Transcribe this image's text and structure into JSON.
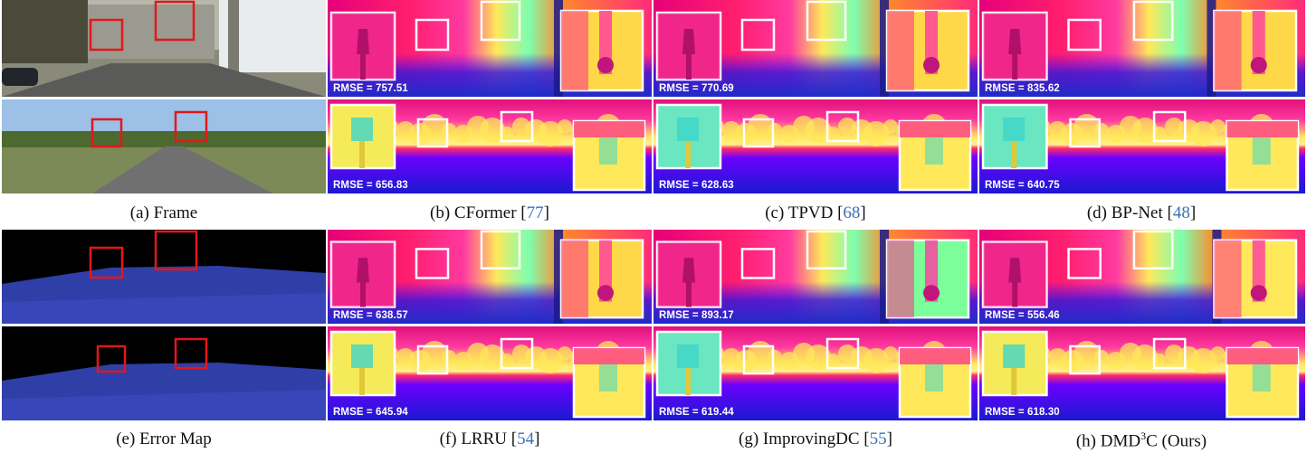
{
  "figure": {
    "captions": {
      "a": {
        "label": "(a) Frame"
      },
      "b": {
        "label": "(b) CFormer [",
        "ref": "77",
        "close": "]"
      },
      "c": {
        "label": "(c) TPVD [",
        "ref": "68",
        "close": "]"
      },
      "d": {
        "label": "(d) BP-Net [",
        "ref": "48",
        "close": "]"
      },
      "e": {
        "label": "(e) Error Map"
      },
      "f": {
        "label": "(f) LRRU [",
        "ref": "54",
        "close": "]"
      },
      "g": {
        "label": "(g) ImprovingDC [",
        "ref": "55",
        "close": "]"
      },
      "h": {
        "label": "(h) DMD",
        "sup": "3",
        "tail": "C (Ours)"
      }
    },
    "rmse": {
      "b1": "RMSE = 757.51",
      "b2": "RMSE = 656.83",
      "c1": "RMSE = 770.69",
      "c2": "RMSE = 628.63",
      "d1": "RMSE = 835.62",
      "d2": "RMSE = 640.75",
      "f1": "RMSE = 638.57",
      "f2": "RMSE = 645.94",
      "g1": "RMSE = 893.17",
      "g2": "RMSE = 619.44",
      "h1": "RMSE = 556.46",
      "h2": "RMSE = 618.30"
    }
  }
}
